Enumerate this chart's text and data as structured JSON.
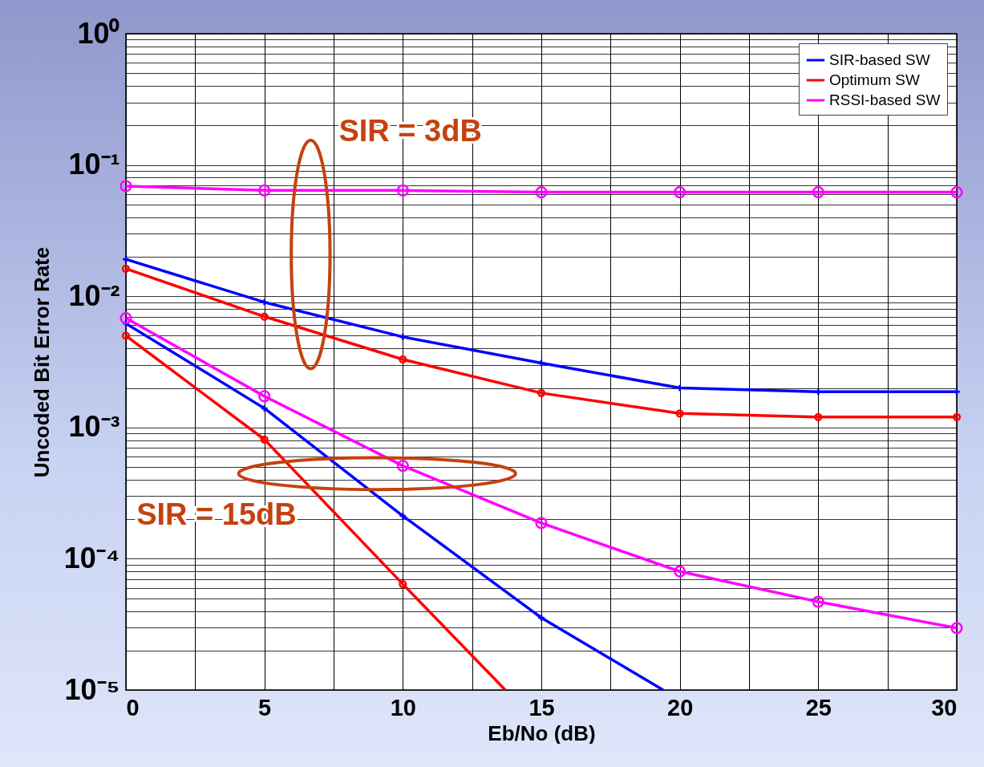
{
  "chart_data": {
    "type": "line",
    "xlabel": "Eb/No (dB)",
    "ylabel": "Uncoded Bit Error Rate",
    "log": "y",
    "grid": true,
    "legend": "top right",
    "xlim": [
      0,
      30
    ],
    "xticks": [
      0,
      {
        "value": 2.5,
        "label": null
      },
      5,
      {
        "value": 7.5,
        "label": null
      },
      10,
      {
        "value": 12.5,
        "label": null
      },
      15,
      {
        "value": 17.5,
        "label": null
      },
      20,
      {
        "value": 22.5,
        "label": null
      },
      25,
      {
        "value": 27.5,
        "label": null
      },
      30
    ],
    "ylim": [
      1e-05,
      1
    ],
    "yticks": [
      {
        "value": 1e-05,
        "label": "10⁻⁵"
      },
      {
        "value": 2e-05,
        "label": null
      },
      {
        "value": 3e-05,
        "label": null
      },
      {
        "value": 4e-05,
        "label": null
      },
      {
        "value": 5e-05,
        "label": null
      },
      {
        "value": 6e-05,
        "label": null
      },
      {
        "value": 7e-05,
        "label": null
      },
      {
        "value": 8e-05,
        "label": null
      },
      {
        "value": 9e-05,
        "label": null
      },
      {
        "value": 0.0001,
        "label": "10⁻⁴"
      },
      {
        "value": 0.0002,
        "label": null
      },
      {
        "value": 0.0003,
        "label": null
      },
      {
        "value": 0.0004,
        "label": null
      },
      {
        "value": 0.0005,
        "label": null
      },
      {
        "value": 0.0006,
        "label": null
      },
      {
        "value": 0.0007,
        "label": null
      },
      {
        "value": 0.0008,
        "label": null
      },
      {
        "value": 0.0009,
        "label": null
      },
      {
        "value": 0.001,
        "label": "10⁻³"
      },
      {
        "value": 0.002,
        "label": null
      },
      {
        "value": 0.003,
        "label": null
      },
      {
        "value": 0.004,
        "label": null
      },
      {
        "value": 0.005,
        "label": null
      },
      {
        "value": 0.006,
        "label": null
      },
      {
        "value": 0.007,
        "label": null
      },
      {
        "value": 0.008,
        "label": null
      },
      {
        "value": 0.009,
        "label": null
      },
      {
        "value": 0.01,
        "label": "10⁻²"
      },
      {
        "value": 0.02,
        "label": null
      },
      {
        "value": 0.03,
        "label": null
      },
      {
        "value": 0.04,
        "label": null
      },
      {
        "value": 0.05,
        "label": null
      },
      {
        "value": 0.06,
        "label": null
      },
      {
        "value": 0.07,
        "label": null
      },
      {
        "value": 0.08,
        "label": null
      },
      {
        "value": 0.09,
        "label": null
      },
      {
        "value": 0.1,
        "label": "10⁻¹"
      },
      {
        "value": 0.2,
        "label": null
      },
      {
        "value": 0.3,
        "label": null
      },
      {
        "value": 0.4,
        "label": null
      },
      {
        "value": 0.5,
        "label": null
      },
      {
        "value": 0.6,
        "label": null
      },
      {
        "value": 0.7,
        "label": null
      },
      {
        "value": 0.8,
        "label": null
      },
      {
        "value": 0.9,
        "label": null
      },
      {
        "value": 1,
        "label": "10⁰"
      }
    ],
    "annotations": [
      "SIR = 3dB",
      "SIR = 15dB"
    ],
    "series": [
      {
        "name": "SIR-based SW",
        "color": "#0000ff",
        "marker": "cross",
        "x": [
          0,
          5,
          10,
          15,
          20,
          25,
          30
        ],
        "values": [
          0.0191,
          0.009,
          0.0049,
          0.0031,
          0.002,
          0.00187,
          0.00187
        ]
      },
      {
        "name": "Optimum SW",
        "color": "#ff0000",
        "marker": "circle",
        "x": [
          0,
          5,
          10,
          15,
          20,
          25,
          30
        ],
        "values": [
          0.0162,
          0.007,
          0.0033,
          0.00183,
          0.00128,
          0.0012,
          0.0012
        ]
      },
      {
        "name": "RSSI-based SW",
        "color": "#ff00ff",
        "marker": "circle",
        "x": [
          0,
          5,
          10,
          15,
          20,
          25,
          30
        ],
        "values": [
          0.069,
          0.064,
          0.064,
          0.062,
          0.062,
          0.062,
          0.062
        ]
      },
      {
        "color": "#0000ff",
        "marker": "cross",
        "x": [
          0,
          5,
          10,
          15,
          19.4
        ],
        "values": [
          0.0062,
          0.0014,
          0.000212,
          3.55e-05,
          1e-05
        ]
      },
      {
        "color": "#ff0000",
        "marker": "circle",
        "x": [
          0,
          5,
          10,
          13.7
        ],
        "values": [
          0.005,
          0.00081,
          6.4e-05,
          1e-05
        ]
      },
      {
        "color": "#ff00ff",
        "marker": "circle",
        "x": [
          0,
          5,
          10,
          15,
          20,
          25,
          30
        ],
        "values": [
          0.0068,
          0.00173,
          0.00051,
          0.000187,
          8e-05,
          4.7e-05,
          2.96e-05
        ]
      }
    ]
  }
}
